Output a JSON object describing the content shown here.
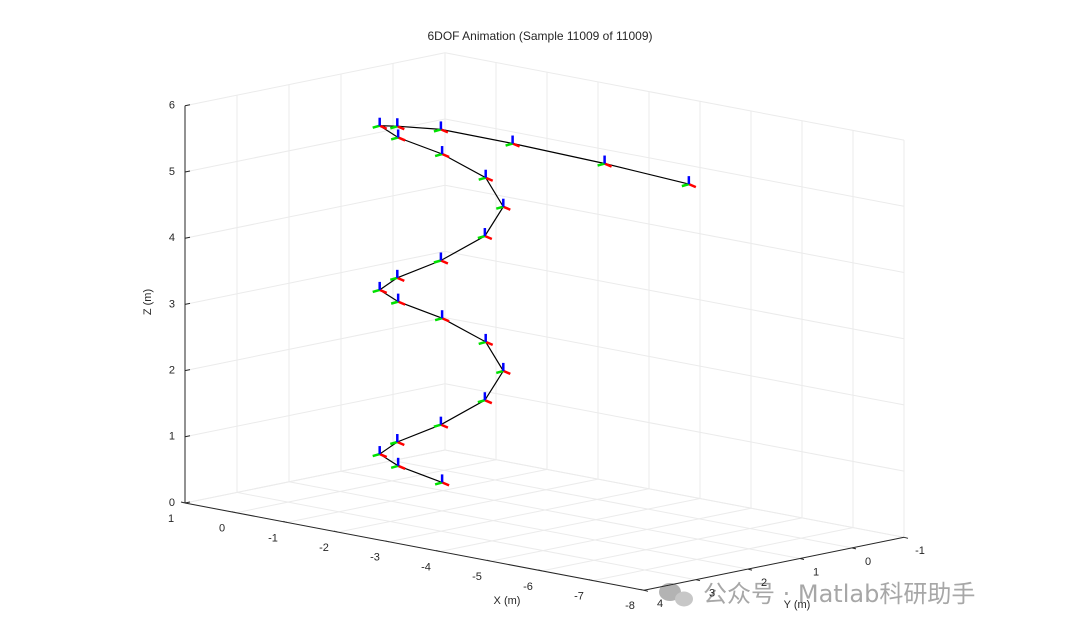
{
  "chart_data": {
    "type": "line3d",
    "title": "6DOF Animation (Sample 11009 of 11009)",
    "x_label": "X (m)",
    "y_label": "Y (m)",
    "z_label": "Z (m)",
    "x": [
      -1.9,
      -1.65,
      -1.9,
      -2.5,
      -3.1,
      -3.35,
      -3.1,
      -2.5,
      -1.9,
      -1.65,
      -1.9,
      -2.5,
      -3.1,
      -3.35,
      -3.1,
      -2.5,
      -1.9,
      -1.65,
      -1.9,
      -2.5,
      -3.1,
      -4.2,
      -5.8,
      -7.35
    ],
    "y": [
      1.9,
      2.5,
      3.1,
      3.35,
      3.1,
      2.5,
      1.9,
      1.65,
      1.9,
      2.5,
      3.1,
      3.35,
      3.1,
      2.5,
      1.9,
      1.65,
      1.9,
      2.5,
      3.1,
      3.35,
      3.1,
      2.8,
      2.6,
      2.5
    ],
    "z": [
      0.4,
      0.71,
      1.02,
      1.33,
      1.64,
      1.95,
      2.26,
      2.57,
      2.88,
      3.19,
      3.5,
      3.81,
      4.12,
      4.43,
      4.74,
      5.05,
      5.36,
      5.67,
      5.98,
      6.1,
      6.1,
      6.0,
      5.9,
      5.8
    ],
    "line_color": "#000000",
    "triad_colors": [
      "#ff0000",
      "#00e000",
      "#0000ff"
    ],
    "xlim": [
      -8,
      1
    ],
    "ylim": [
      -1,
      4
    ],
    "zlim": [
      0,
      6
    ],
    "xticks": [
      1,
      0,
      -1,
      -2,
      -3,
      -4,
      -5,
      -6,
      -7,
      -8
    ],
    "yticks": [
      4,
      3,
      2,
      1,
      0,
      -1
    ],
    "zticks": [
      0,
      1,
      2,
      3,
      4,
      5,
      6
    ],
    "grid": true,
    "watermark": "公众号 · Matlab科研助手"
  }
}
